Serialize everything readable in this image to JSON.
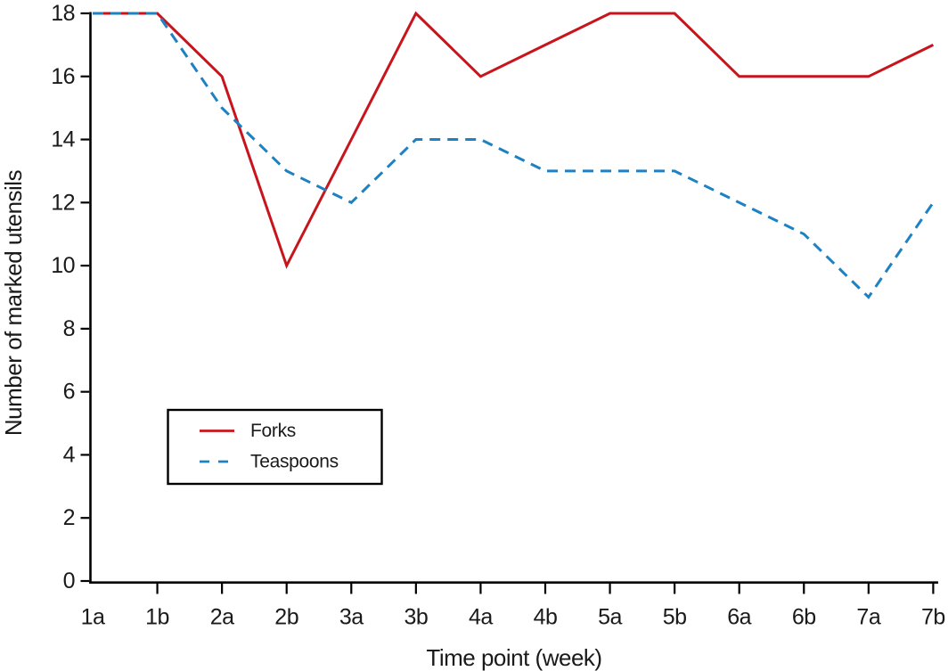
{
  "chart_data": {
    "type": "line",
    "title": "",
    "xlabel": "Time point (week)",
    "ylabel": "Number of marked utensils",
    "categories": [
      "1a",
      "1b",
      "2a",
      "2b",
      "3a",
      "3b",
      "4a",
      "4b",
      "5a",
      "5b",
      "6a",
      "6b",
      "7a",
      "7b"
    ],
    "series": [
      {
        "name": "Forks",
        "style": "solid",
        "color": "#c8141c",
        "values": [
          18,
          18,
          16,
          10,
          14,
          18,
          16,
          17,
          18,
          18,
          16,
          16,
          16,
          17
        ]
      },
      {
        "name": "Teaspoons",
        "style": "dashed",
        "color": "#1e81c2",
        "values": [
          18,
          18,
          15,
          13,
          12,
          14,
          14,
          13,
          13,
          13,
          12,
          11,
          9,
          12
        ]
      }
    ],
    "ylim": [
      0,
      18
    ],
    "ytick_step": 2,
    "grid": false,
    "legend_position": "inside-lower-left",
    "axis_color": "#000000",
    "text_color": "#1a1a1a"
  }
}
